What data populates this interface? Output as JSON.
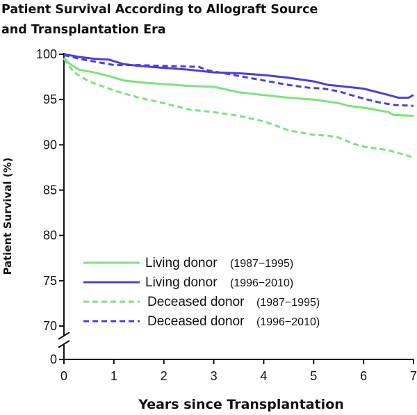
{
  "title_line1": "Patient Survival According to Allograft Source",
  "title_line2": "and Transplantation Era",
  "chart_data": {
    "type": "line",
    "title": "Patient Survival According to Allograft Source and Transplantation Era",
    "xlabel": "Years since Transplantation",
    "ylabel": "Patient Survival (%)",
    "xlim": [
      0,
      7
    ],
    "ylim": [
      70,
      100
    ],
    "axis_break": true,
    "y_break_tick": "0",
    "x_ticks": [
      "0",
      "1",
      "2",
      "3",
      "4",
      "5",
      "6",
      "7"
    ],
    "y_ticks": [
      "70",
      "75",
      "80",
      "85",
      "90",
      "95",
      "100"
    ],
    "grid": false,
    "legend_position": "bottom-left",
    "series": [
      {
        "label": "Living donor",
        "era": "(1987−1995)",
        "color": "#7be37b",
        "dash": "solid",
        "x": [
          0,
          0.1,
          0.3,
          0.6,
          0.9,
          1.2,
          1.5,
          2.0,
          2.5,
          3.0,
          3.5,
          4.0,
          4.5,
          5.0,
          5.5,
          5.7,
          6.0,
          6.5,
          6.6,
          7.0
        ],
        "y": [
          99.6,
          99.0,
          98.3,
          98.0,
          97.6,
          97.1,
          96.9,
          96.7,
          96.5,
          96.4,
          95.8,
          95.5,
          95.2,
          95.0,
          94.6,
          94.3,
          94.1,
          93.6,
          93.3,
          93.2
        ]
      },
      {
        "label": "Living donor",
        "era": "(1996−2010)",
        "color": "#4a3fe0",
        "dash": "solid",
        "x": [
          0,
          0.3,
          0.6,
          0.9,
          1.2,
          1.5,
          2.0,
          2.5,
          3.0,
          3.5,
          4.0,
          4.5,
          5.0,
          5.3,
          5.5,
          6.0,
          6.5,
          6.7,
          6.9,
          7.0
        ],
        "y": [
          100,
          99.7,
          99.5,
          99.4,
          98.9,
          98.7,
          98.5,
          98.3,
          98.0,
          97.9,
          97.7,
          97.4,
          97.0,
          96.6,
          96.5,
          96.2,
          95.5,
          95.2,
          95.2,
          95.5
        ]
      },
      {
        "label": "Deceased donor",
        "era": "(1987−1995)",
        "color": "#7be37b",
        "dash": "dashed",
        "x": [
          0,
          0.2,
          0.5,
          0.8,
          1.0,
          1.5,
          2.0,
          2.5,
          3.0,
          3.5,
          4.0,
          4.5,
          5.0,
          5.3,
          5.5,
          5.8,
          6.0,
          6.5,
          7.0
        ],
        "y": [
          99.5,
          98.0,
          97.0,
          96.4,
          96.0,
          95.2,
          94.6,
          93.9,
          93.6,
          93.2,
          92.6,
          91.6,
          91.1,
          91.0,
          90.8,
          90.1,
          89.8,
          89.4,
          88.6
        ]
      },
      {
        "label": "Deceased donor",
        "era": "(1996−2010)",
        "color": "#4a3fe0",
        "dash": "dashed",
        "x": [
          0,
          0.3,
          0.6,
          1.0,
          1.5,
          2.0,
          2.7,
          2.9,
          3.5,
          4.0,
          4.5,
          4.9,
          5.2,
          5.5,
          6.0,
          6.3,
          6.6,
          7.0
        ],
        "y": [
          99.9,
          99.5,
          99.2,
          98.8,
          98.8,
          98.7,
          98.6,
          98.2,
          97.6,
          97.1,
          96.6,
          96.3,
          96.2,
          95.9,
          95.1,
          94.7,
          94.4,
          94.3
        ]
      }
    ]
  }
}
